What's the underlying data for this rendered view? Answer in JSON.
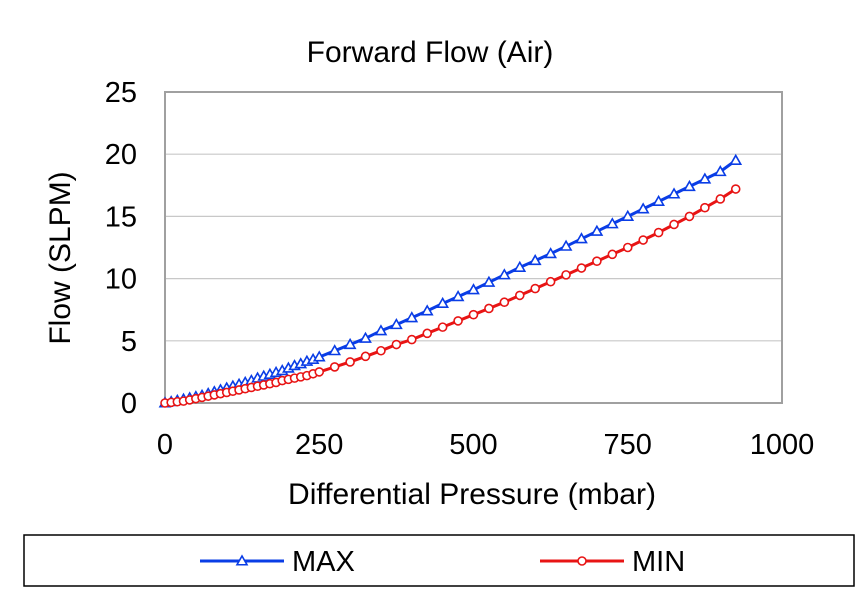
{
  "chart_data": {
    "type": "line",
    "title": "Forward Flow (Air)",
    "xlabel": "Differential Pressure (mbar)",
    "ylabel": "Flow (SLPM)",
    "xlim": [
      0,
      1000
    ],
    "ylim": [
      0,
      25
    ],
    "x_ticks": [
      0,
      250,
      500,
      750,
      1000
    ],
    "y_ticks": [
      0,
      5,
      10,
      15,
      20,
      25
    ],
    "grid": "horizontal",
    "legend_position": "bottom",
    "series": [
      {
        "name": "MAX",
        "color": "#0a3de6",
        "marker": "triangle",
        "x": [
          0,
          10,
          20,
          30,
          40,
          50,
          60,
          70,
          80,
          90,
          100,
          110,
          120,
          130,
          140,
          150,
          160,
          170,
          180,
          190,
          200,
          210,
          220,
          230,
          240,
          250,
          275,
          300,
          325,
          350,
          375,
          400,
          425,
          450,
          475,
          500,
          525,
          550,
          575,
          600,
          625,
          650,
          675,
          700,
          725,
          750,
          775,
          800,
          825,
          850,
          875,
          900,
          925
        ],
        "y": [
          0.0,
          0.1,
          0.2,
          0.3,
          0.4,
          0.5,
          0.6,
          0.75,
          0.9,
          1.05,
          1.2,
          1.35,
          1.5,
          1.65,
          1.8,
          2.0,
          2.15,
          2.3,
          2.45,
          2.6,
          2.8,
          3.0,
          3.15,
          3.35,
          3.5,
          3.7,
          4.2,
          4.7,
          5.2,
          5.8,
          6.3,
          6.85,
          7.4,
          8.0,
          8.55,
          9.1,
          9.7,
          10.3,
          10.9,
          11.45,
          12.0,
          12.6,
          13.2,
          13.8,
          14.4,
          15.0,
          15.6,
          16.2,
          16.8,
          17.4,
          18.0,
          18.6,
          19.5
        ]
      },
      {
        "name": "MIN",
        "color": "#e81414",
        "marker": "circle",
        "x": [
          0,
          10,
          20,
          30,
          40,
          50,
          60,
          70,
          80,
          90,
          100,
          110,
          120,
          130,
          140,
          150,
          160,
          170,
          180,
          190,
          200,
          210,
          220,
          230,
          240,
          250,
          275,
          300,
          325,
          350,
          375,
          400,
          425,
          450,
          475,
          500,
          525,
          550,
          575,
          600,
          625,
          650,
          675,
          700,
          725,
          750,
          775,
          800,
          825,
          850,
          875,
          900,
          925
        ],
        "y": [
          0.0,
          0.05,
          0.1,
          0.15,
          0.25,
          0.35,
          0.45,
          0.55,
          0.65,
          0.75,
          0.85,
          0.95,
          1.05,
          1.15,
          1.25,
          1.35,
          1.45,
          1.55,
          1.65,
          1.8,
          1.9,
          2.0,
          2.1,
          2.2,
          2.35,
          2.5,
          2.9,
          3.3,
          3.75,
          4.2,
          4.7,
          5.1,
          5.6,
          6.1,
          6.6,
          7.1,
          7.6,
          8.1,
          8.65,
          9.2,
          9.75,
          10.3,
          10.85,
          11.4,
          11.95,
          12.5,
          13.1,
          13.7,
          14.35,
          15.0,
          15.7,
          16.4,
          17.2
        ]
      }
    ]
  }
}
